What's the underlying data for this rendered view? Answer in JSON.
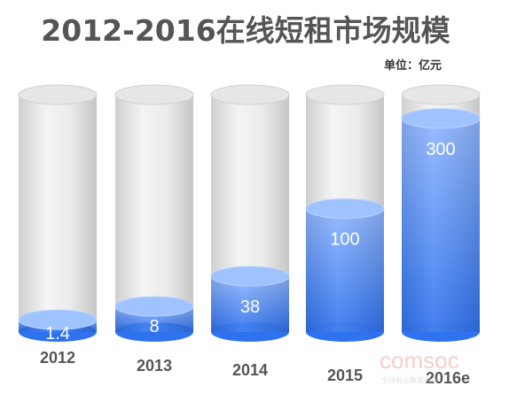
{
  "chart_data": {
    "type": "bar",
    "title": "2012-2016在线短租市场规模",
    "unit_label": "单位：亿元",
    "categories": [
      "2012",
      "2013",
      "2014",
      "2015",
      "2016e"
    ],
    "values": [
      1.4,
      8,
      38,
      100,
      300
    ],
    "value_labels": [
      "1.4",
      "8",
      "38",
      "100",
      "300"
    ],
    "legend": "none",
    "grid": false
  },
  "watermark": {
    "brand": "comsoc",
    "tagline": "全球商业数据用户"
  },
  "colors": {
    "title": "#555555",
    "fill_top": "#9fc3ff",
    "fill_bottom": "#2f74f0",
    "cylinder_body": "#d9d9d9",
    "category_label": "#555555",
    "value_label": "#ffffff",
    "watermark": "#f2a3a3"
  }
}
